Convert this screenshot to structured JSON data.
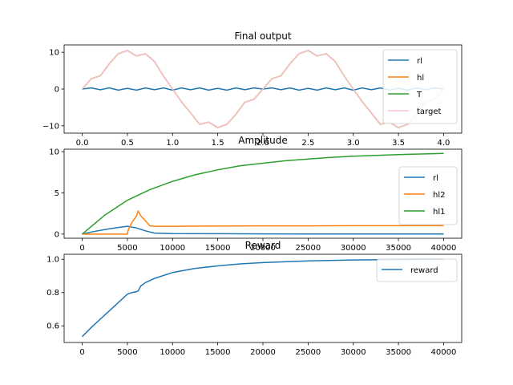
{
  "colors": {
    "blue": "#1f77b4",
    "orange": "#ff7f0e",
    "green": "#2ca02c",
    "pink": "#ffc0cb"
  },
  "chart_data": [
    {
      "type": "line",
      "title": "Final output",
      "xlim": [
        -0.2,
        4.2
      ],
      "ylim": [
        -12,
        12
      ],
      "xticks": [
        "0.0",
        "0.5",
        "1.0",
        "1.5",
        "2.0",
        "2.5",
        "3.0",
        "3.5",
        "4.0"
      ],
      "yticks": [
        "10",
        "0",
        "−10"
      ],
      "legend": "right",
      "series": [
        {
          "name": "rl",
          "color": "#1f77b4",
          "description_shape": "small oscillation",
          "x": [
            0,
            0.1,
            0.2,
            0.3,
            0.4,
            0.5,
            0.6,
            0.7,
            0.8,
            0.9,
            1.0,
            1.1,
            1.2,
            1.3,
            1.4,
            1.5,
            1.6,
            1.7,
            1.8,
            1.9,
            2.0,
            2.1,
            2.2,
            2.3,
            2.4,
            2.5,
            2.6,
            2.7,
            2.8,
            2.9,
            3.0,
            3.1,
            3.2,
            3.3,
            3.4,
            3.5,
            3.6,
            3.7,
            3.8,
            3.9,
            4.0
          ],
          "y": [
            0,
            0.3,
            -0.2,
            0.3,
            -0.3,
            0.2,
            -0.3,
            0.3,
            -0.2,
            0.3,
            -0.3,
            0.3,
            -0.2,
            0.3,
            -0.3,
            0.2,
            -0.3,
            0.3,
            -0.2,
            0.3,
            0,
            0.3,
            -0.2,
            0.3,
            -0.3,
            0.2,
            -0.3,
            0.3,
            -0.2,
            0.3,
            -0.3,
            0.3,
            -0.2,
            0.3,
            -0.3,
            0.2,
            -0.3,
            0.3,
            -0.2,
            0.3,
            0
          ]
        },
        {
          "name": "hl",
          "color": "#ff7f0e",
          "x": [
            0,
            0.1,
            0.2,
            0.3,
            0.4,
            0.5,
            0.6,
            0.7,
            0.8,
            0.9,
            1.0,
            1.1,
            1.2,
            1.3,
            1.4,
            1.5,
            1.6,
            1.7,
            1.8,
            1.9,
            2.0,
            2.1,
            2.2,
            2.3,
            2.4,
            2.5,
            2.6,
            2.7,
            2.8,
            2.9,
            3.0,
            3.1,
            3.2,
            3.3,
            3.4,
            3.5,
            3.6,
            3.7,
            3.8,
            3.9,
            4.0
          ],
          "y": [
            0,
            2.8,
            3.6,
            6.9,
            9.6,
            10.5,
            9.0,
            9.6,
            7.5,
            3.5,
            0.0,
            -3.5,
            -6.5,
            -9.6,
            -9.0,
            -10.5,
            -9.6,
            -6.9,
            -3.6,
            -2.8,
            0,
            2.8,
            3.6,
            6.9,
            9.6,
            10.5,
            9.0,
            9.6,
            7.5,
            3.5,
            0.0,
            -3.5,
            -6.5,
            -9.6,
            -9.0,
            -10.5,
            -9.6,
            -6.9,
            -3.6,
            -2.8,
            0
          ]
        },
        {
          "name": "T",
          "color": "#2ca02c",
          "x": [
            0,
            0.1,
            0.2,
            0.3,
            0.4,
            0.5,
            0.6,
            0.7,
            0.8,
            0.9,
            1.0,
            1.1,
            1.2,
            1.3,
            1.4,
            1.5,
            1.6,
            1.7,
            1.8,
            1.9,
            2.0,
            2.1,
            2.2,
            2.3,
            2.4,
            2.5,
            2.6,
            2.7,
            2.8,
            2.9,
            3.0,
            3.1,
            3.2,
            3.3,
            3.4,
            3.5,
            3.6,
            3.7,
            3.8,
            3.9,
            4.0
          ],
          "y": [
            0,
            2.8,
            3.6,
            6.9,
            9.6,
            10.5,
            9.0,
            9.6,
            7.5,
            3.5,
            0.0,
            -3.5,
            -6.5,
            -9.6,
            -9.0,
            -10.5,
            -9.6,
            -6.9,
            -3.6,
            -2.8,
            0,
            2.8,
            3.6,
            6.9,
            9.6,
            10.5,
            9.0,
            9.6,
            7.5,
            3.5,
            0.0,
            -3.5,
            -6.5,
            -9.6,
            -9.0,
            -10.5,
            -9.6,
            -6.9,
            -3.6,
            -2.8,
            0
          ]
        },
        {
          "name": "target",
          "color": "#ffc0cb",
          "x": [
            0,
            0.1,
            0.2,
            0.3,
            0.4,
            0.5,
            0.6,
            0.7,
            0.8,
            0.9,
            1.0,
            1.1,
            1.2,
            1.3,
            1.4,
            1.5,
            1.6,
            1.7,
            1.8,
            1.9,
            2.0,
            2.1,
            2.2,
            2.3,
            2.4,
            2.5,
            2.6,
            2.7,
            2.8,
            2.9,
            3.0,
            3.1,
            3.2,
            3.3,
            3.4,
            3.5,
            3.6,
            3.7,
            3.8,
            3.9,
            4.0
          ],
          "y": [
            0,
            2.8,
            3.6,
            6.9,
            9.6,
            10.5,
            9.0,
            9.6,
            7.5,
            3.5,
            0.0,
            -3.5,
            -6.5,
            -9.6,
            -9.0,
            -10.5,
            -9.6,
            -6.9,
            -3.6,
            -2.8,
            0,
            2.8,
            3.6,
            6.9,
            9.6,
            10.5,
            9.0,
            9.6,
            7.5,
            3.5,
            0.0,
            -3.5,
            -6.5,
            -9.6,
            -9.0,
            -10.5,
            -9.6,
            -6.9,
            -3.6,
            -2.8,
            0
          ]
        }
      ]
    },
    {
      "type": "line",
      "title": "Amplitude",
      "xlim": [
        -2000,
        42000
      ],
      "ylim": [
        -0.5,
        10.3
      ],
      "xticks": [
        "0",
        "5000",
        "10000",
        "15000",
        "20000",
        "25000",
        "30000",
        "35000",
        "40000"
      ],
      "yticks": [
        "10",
        "5",
        "0"
      ],
      "legend": "right",
      "series": [
        {
          "name": "rl",
          "color": "#1f77b4",
          "x": [
            0,
            1000,
            2000,
            3000,
            4000,
            5000,
            6000,
            7000,
            8000,
            10000,
            15000,
            20000,
            25000,
            30000,
            35000,
            40000
          ],
          "y": [
            0,
            0.25,
            0.45,
            0.65,
            0.8,
            0.95,
            0.75,
            0.4,
            0.12,
            0.06,
            0.04,
            0.03,
            0.02,
            0.02,
            0.01,
            0.01
          ]
        },
        {
          "name": "hl2",
          "color": "#ff7f0e",
          "x": [
            0,
            5000,
            5100,
            5500,
            6000,
            6200,
            6500,
            7000,
            7500,
            8000,
            10000,
            15000,
            20000,
            25000,
            30000,
            35000,
            40000
          ],
          "y": [
            0,
            0,
            0.5,
            1.4,
            2.2,
            2.8,
            2.2,
            1.6,
            1.0,
            0.95,
            0.95,
            0.98,
            1.0,
            1.0,
            1.02,
            1.02,
            1.02
          ]
        },
        {
          "name": "hl1",
          "color": "#2ca02c",
          "x": [
            0,
            2500,
            5000,
            7500,
            10000,
            12500,
            15000,
            17500,
            20000,
            22500,
            25000,
            27500,
            30000,
            32500,
            35000,
            37500,
            40000
          ],
          "y": [
            0,
            2.3,
            4.1,
            5.4,
            6.4,
            7.2,
            7.8,
            8.3,
            8.6,
            8.9,
            9.1,
            9.3,
            9.45,
            9.55,
            9.65,
            9.72,
            9.78
          ]
        }
      ]
    },
    {
      "type": "line",
      "title": "Reward",
      "xlim": [
        -2000,
        42000
      ],
      "ylim": [
        0.5,
        1.03
      ],
      "xticks": [
        "0",
        "5000",
        "10000",
        "15000",
        "20000",
        "25000",
        "30000",
        "35000",
        "40000"
      ],
      "yticks": [
        "1.0",
        "0.8",
        "0.6"
      ],
      "legend": "top-right",
      "series": [
        {
          "name": "reward",
          "color": "#1f77b4",
          "x": [
            0,
            1000,
            2000,
            3000,
            4000,
            5000,
            5500,
            6000,
            6200,
            6500,
            7000,
            8000,
            10000,
            12500,
            15000,
            17500,
            20000,
            25000,
            30000,
            35000,
            40000
          ],
          "y": [
            0.535,
            0.59,
            0.64,
            0.69,
            0.74,
            0.79,
            0.8,
            0.805,
            0.81,
            0.84,
            0.86,
            0.885,
            0.92,
            0.945,
            0.96,
            0.972,
            0.98,
            0.99,
            0.996,
            0.998,
            0.999
          ]
        }
      ]
    }
  ]
}
